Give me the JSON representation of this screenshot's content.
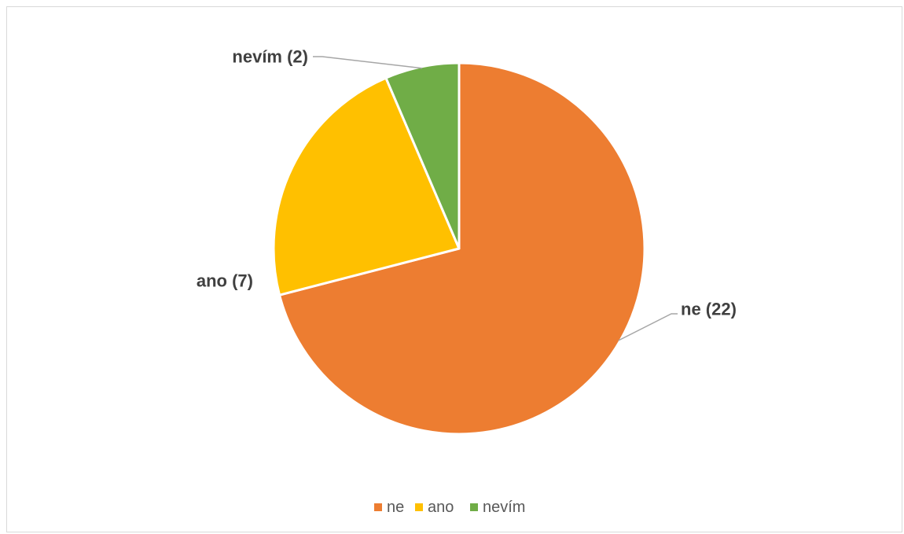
{
  "chart_data": {
    "type": "pie",
    "categories": [
      "ne",
      "ano",
      "nevím"
    ],
    "values": [
      22,
      7,
      2
    ],
    "colors": [
      "#ED7D31",
      "#FFC000",
      "#70AD47"
    ],
    "data_labels": [
      "ne (22)",
      "ano (7)",
      "nevím (2)"
    ],
    "legend": {
      "position": "bottom",
      "entries": [
        "ne",
        "ano",
        "nevím"
      ]
    },
    "slice_border_color": "#ffffff",
    "leader_line_color": "#a6a6a6"
  }
}
